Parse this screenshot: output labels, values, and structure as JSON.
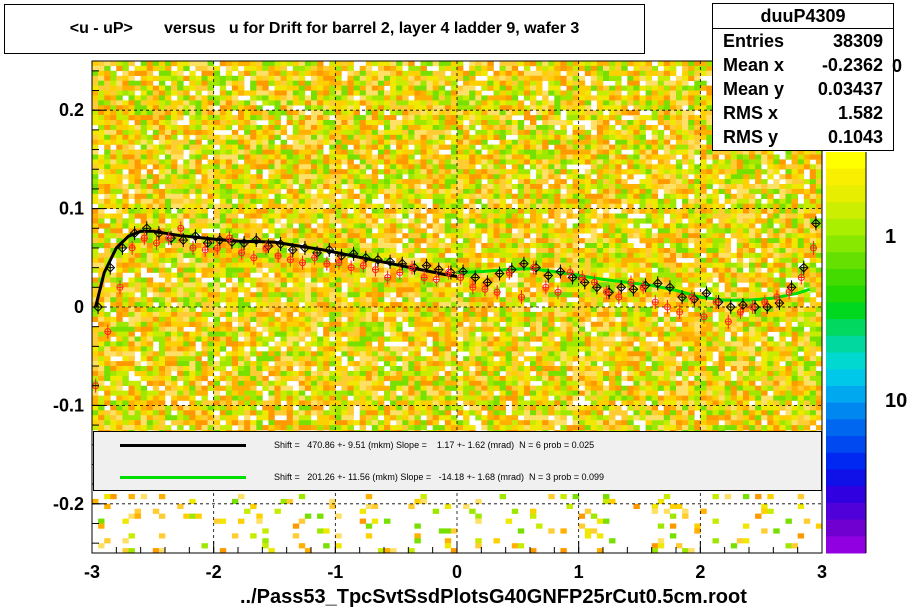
{
  "title": "<u - uP>       versus   u for Drift for barrel 2, layer 4 ladder 9, wafer 3",
  "stats": {
    "name": "duuP4309",
    "rows": [
      {
        "label": "Entries",
        "value": "38309"
      },
      {
        "label": "Mean x",
        "value": "-0.2362"
      },
      {
        "label": "Mean y",
        "value": "0.03437"
      },
      {
        "label": "RMS x",
        "value": "1.582"
      },
      {
        "label": "RMS y",
        "value": "0.1043"
      }
    ]
  },
  "legend": {
    "black_text": "Shift =   470.86 +- 9.51 (mkm) Slope =    1.17 +- 1.62 (mrad)  N = 6 prob = 0.025",
    "green_text": "Shift =   201.26 +- 11.56 (mkm) Slope =   -14.18 +- 1.68 (mrad)  N = 3 prob = 0.099"
  },
  "footer": "../Pass53_TpcSvtSsdPlotsG40GNFP25rCut0.5cm.root",
  "zaxis": {
    "labels": [
      "1",
      "10"
    ],
    "stub": "0"
  },
  "colors": {
    "black_fit": "#000000",
    "green_fit": "#00e000",
    "points_black": "#000000",
    "points_red": "#ff2020"
  },
  "chart_data": {
    "type": "scatter",
    "title": "<u - uP>       versus   u for Drift for barrel 2, layer 4 ladder 9, wafer 3",
    "xlim": [
      -3,
      3
    ],
    "ylim": [
      -0.25,
      0.25
    ],
    "xticks": [
      -3,
      -2,
      -1,
      0,
      1,
      2,
      3
    ],
    "xtick_labels": [
      "-3",
      "-2",
      "-1",
      "0",
      "1",
      "2",
      "3"
    ],
    "yticks": [
      -0.2,
      -0.1,
      0,
      0.1,
      0.2
    ],
    "ytick_labels": [
      "-0.2",
      "-0.1",
      "0",
      "0.1",
      "0.2"
    ],
    "grid": true,
    "background": "2D histogram (colz), densely filled between y = -0.13 and y = 0.25",
    "series": [
      {
        "name": "",
        "x": [
          -2.95,
          -2.85,
          -2.75,
          -2.65,
          -2.55,
          -2.45,
          -2.35,
          -2.25,
          -2.15,
          -2.05,
          -1.95,
          -1.85,
          -1.75,
          -1.65,
          -1.55,
          -1.45,
          -1.35,
          -1.25,
          -1.15,
          -1.05,
          -0.95,
          -0.85,
          -0.75,
          -0.65,
          -0.55,
          -0.45,
          -0.35,
          -0.25,
          -0.15,
          -0.05,
          0.05,
          0.15,
          0.25,
          0.35,
          0.45,
          0.55,
          0.65,
          0.75,
          0.85,
          0.95,
          1.05,
          1.15,
          1.25,
          1.35,
          1.45,
          1.55,
          1.65,
          1.75,
          1.85,
          1.95,
          2.05,
          2.15,
          2.25,
          2.35,
          2.45,
          2.55,
          2.65,
          2.75,
          2.85,
          2.95
        ],
        "y": [
          0.0,
          0.04,
          0.06,
          0.075,
          0.08,
          0.075,
          0.07,
          0.068,
          0.072,
          0.065,
          0.068,
          0.066,
          0.065,
          0.068,
          0.062,
          0.064,
          0.058,
          0.06,
          0.055,
          0.058,
          0.052,
          0.054,
          0.05,
          0.048,
          0.046,
          0.044,
          0.04,
          0.042,
          0.038,
          0.035,
          0.036,
          0.03,
          0.025,
          0.034,
          0.038,
          0.044,
          0.04,
          0.032,
          0.036,
          0.03,
          0.025,
          0.02,
          0.015,
          0.02,
          0.018,
          0.022,
          0.024,
          0.02,
          0.01,
          0.008,
          0.014,
          0.005,
          0.0,
          0.002,
          0.0,
          0.0,
          0.004,
          0.02,
          0.04,
          0.085
        ]
      },
      {
        "name": "",
        "x": [
          -2.97,
          -2.87,
          -2.77,
          -2.67,
          -2.57,
          -2.47,
          -2.37,
          -2.27,
          -2.17,
          -2.07,
          -1.97,
          -1.87,
          -1.77,
          -1.67,
          -1.57,
          -1.47,
          -1.37,
          -1.27,
          -1.17,
          -1.07,
          -0.97,
          -0.87,
          -0.77,
          -0.67,
          -0.57,
          -0.47,
          -0.37,
          -0.27,
          -0.17,
          -0.07,
          0.03,
          0.13,
          0.23,
          0.33,
          0.43,
          0.53,
          0.63,
          0.73,
          0.83,
          0.93,
          1.03,
          1.13,
          1.23,
          1.33,
          1.43,
          1.53,
          1.63,
          1.73,
          1.83,
          1.93,
          2.03,
          2.13,
          2.23,
          2.33,
          2.43,
          2.53,
          2.63,
          2.73,
          2.83,
          2.93
        ],
        "y": [
          -0.08,
          -0.025,
          0.02,
          0.06,
          0.07,
          0.065,
          0.07,
          0.08,
          0.06,
          0.058,
          0.06,
          0.07,
          0.055,
          0.05,
          0.06,
          0.052,
          0.048,
          0.045,
          0.05,
          0.044,
          0.045,
          0.04,
          0.042,
          0.038,
          0.03,
          0.035,
          0.04,
          0.03,
          0.028,
          0.035,
          0.03,
          0.02,
          0.018,
          0.015,
          0.035,
          0.01,
          0.04,
          0.02,
          0.015,
          0.035,
          0.03,
          0.025,
          0.015,
          0.01,
          0.025,
          0.02,
          0.005,
          0.0,
          -0.005,
          0.01,
          -0.01,
          0.005,
          -0.015,
          -0.005,
          0.0,
          0.005,
          0.01,
          0.015,
          0.03,
          0.06
        ]
      }
    ],
    "fits": [
      {
        "name": "",
        "x": [
          -2.97,
          -2.9,
          -2.8,
          -2.7,
          -2.6,
          -2.5,
          -2.3,
          -2.0,
          -1.8,
          -1.5,
          -1.3,
          -1.1,
          -0.9,
          -0.7,
          -0.5,
          -0.3,
          -0.1,
          0.0
        ],
        "y": [
          0.0,
          0.035,
          0.06,
          0.072,
          0.077,
          0.077,
          0.073,
          0.069,
          0.067,
          0.066,
          0.062,
          0.058,
          0.053,
          0.048,
          0.043,
          0.038,
          0.033,
          0.031
        ]
      },
      {
        "name": "",
        "x": [
          0.0,
          0.2,
          0.4,
          0.6,
          0.8,
          1.0,
          1.2,
          1.4,
          1.6,
          1.8,
          2.0,
          2.2,
          2.4,
          2.6,
          2.8,
          2.9
        ],
        "y": [
          0.035,
          0.036,
          0.038,
          0.039,
          0.036,
          0.032,
          0.028,
          0.025,
          0.022,
          0.017,
          0.01,
          0.007,
          0.007,
          0.009,
          0.014,
          0.018
        ]
      }
    ]
  }
}
